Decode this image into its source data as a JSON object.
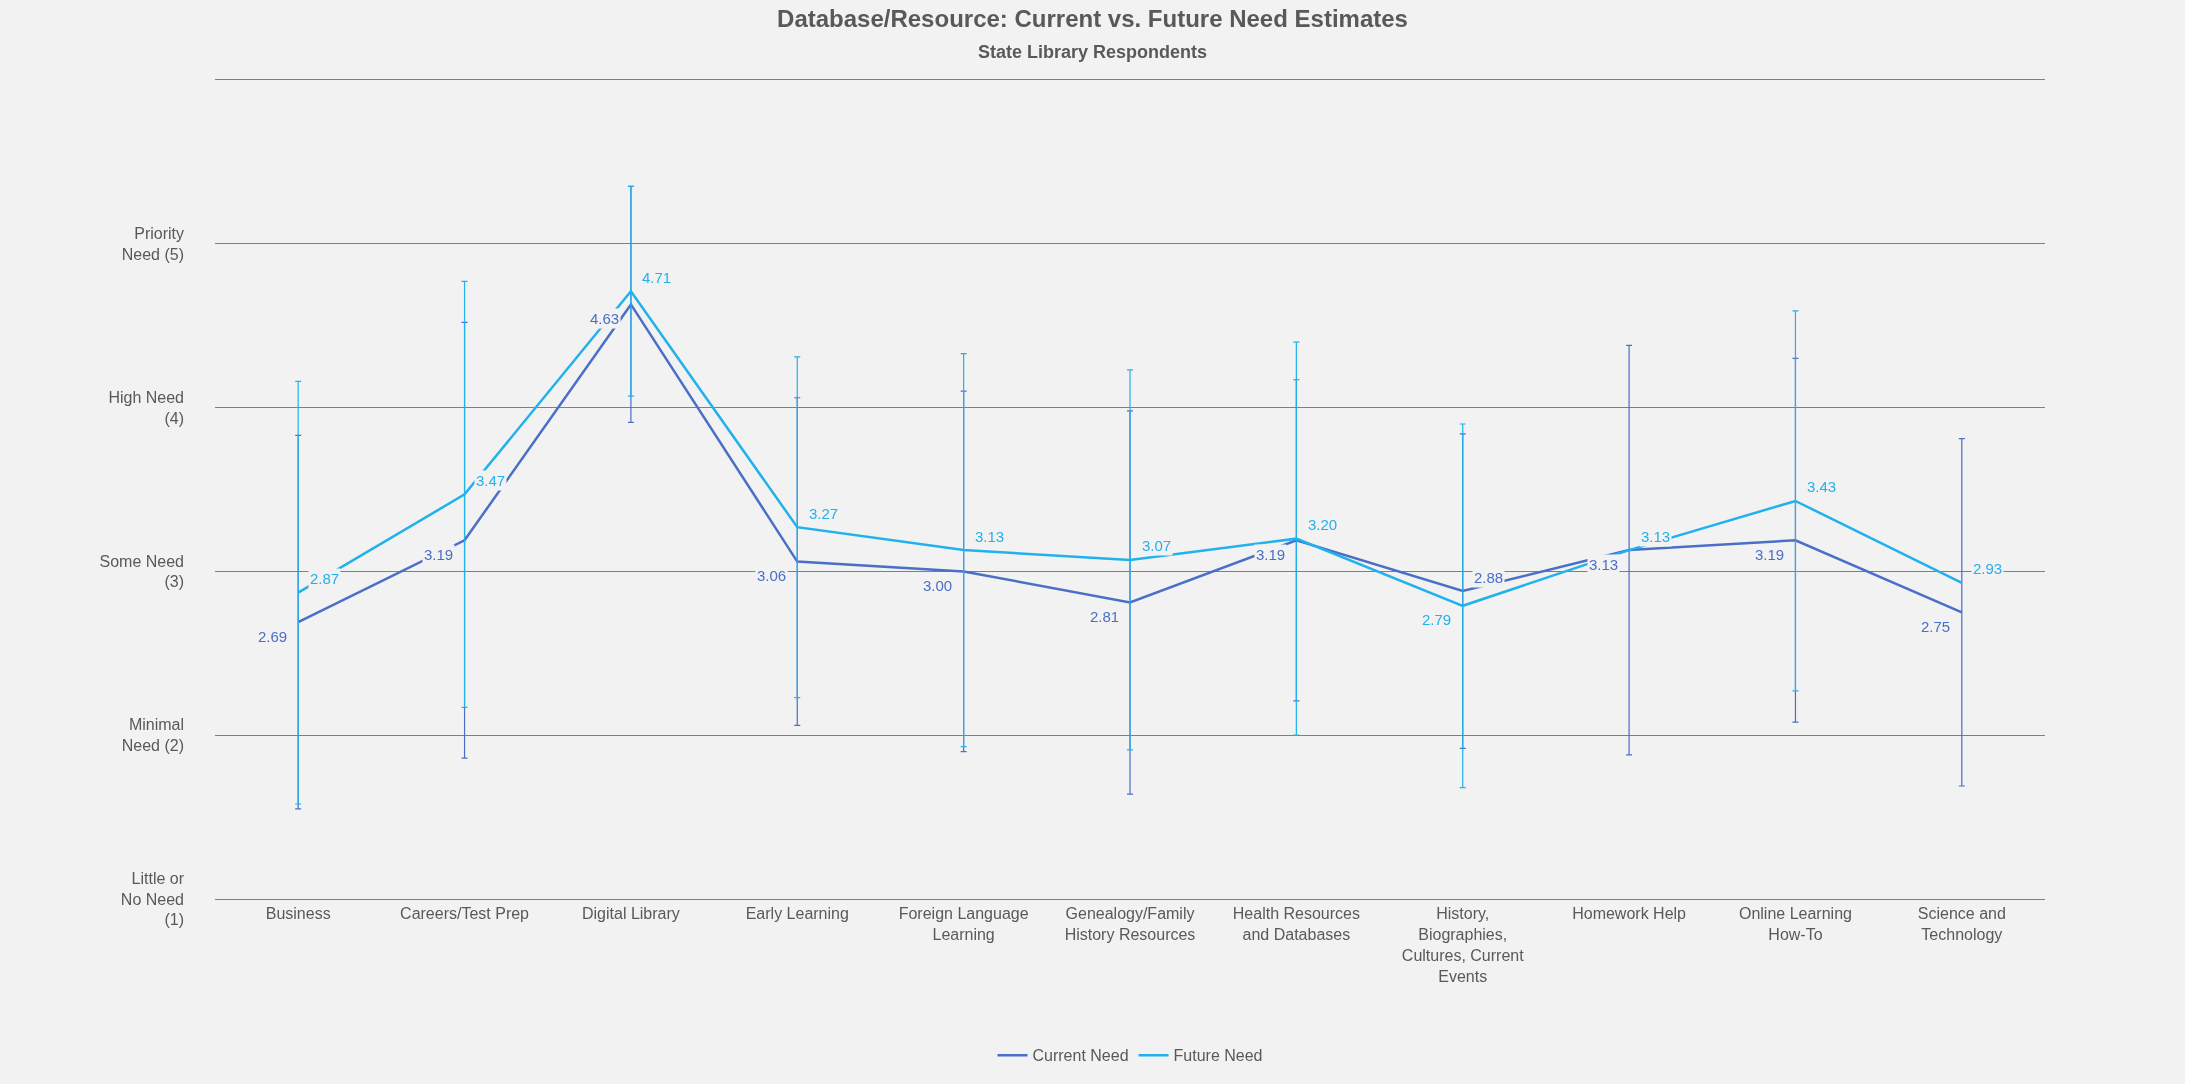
{
  "chart_data": {
    "type": "line",
    "title": "Database/Resource: Current vs. Future Need Estimates",
    "subtitle": "State Library Respondents",
    "categories": [
      "Business",
      "Careers/Test Prep",
      "Digital Library",
      "Early Learning",
      "Foreign Language Learning",
      "Genealogy/Family History Resources",
      "Health Resources and Databases",
      "History, Biographies, Cultures, Current Events",
      "Homework Help",
      "Online Learning How-To",
      "Science and Technology"
    ],
    "series": [
      {
        "name": "Current Need",
        "color": "#4a6fc7",
        "values": [
          2.69,
          3.19,
          4.63,
          3.06,
          3.0,
          2.81,
          3.19,
          2.88,
          3.13,
          3.19,
          2.75
        ],
        "value_labels": [
          "2.69",
          "3.19",
          "4.63",
          "3.06",
          "3.00",
          "2.81",
          "3.19",
          "2.88",
          "3.13",
          "3.19",
          "2.75"
        ],
        "errors": [
          1.14,
          1.33,
          0.72,
          1.0,
          1.1,
          1.17,
          0.98,
          0.96,
          1.25,
          1.11,
          1.06
        ]
      },
      {
        "name": "Future Need",
        "color": "#21b1ec",
        "values": [
          2.87,
          3.47,
          4.71,
          3.27,
          3.13,
          3.07,
          3.2,
          2.79,
          3.13,
          3.43,
          2.93
        ],
        "value_labels": [
          "2.87",
          "3.47",
          "4.71",
          "3.27",
          "3.13",
          "3.07",
          "3.20",
          "2.79",
          "3.13",
          "3.43",
          "2.93"
        ],
        "errors": [
          1.29,
          1.3,
          0.64,
          1.04,
          1.2,
          1.16,
          1.2,
          1.11,
          null,
          1.16,
          null
        ]
      }
    ],
    "ylim": [
      1,
      6
    ],
    "yticks": [
      {
        "value": 1,
        "label": "Little or No Need (1)"
      },
      {
        "value": 2,
        "label": "Minimal Need (2)"
      },
      {
        "value": 3,
        "label": "Some Need (3)"
      },
      {
        "value": 4,
        "label": "High Need (4)"
      },
      {
        "value": 5,
        "label": "Priority Need (5)"
      },
      {
        "value": 6,
        "label": null
      }
    ],
    "grid": "y",
    "legend": "bottom",
    "marker": "none",
    "line_style": "solid"
  }
}
